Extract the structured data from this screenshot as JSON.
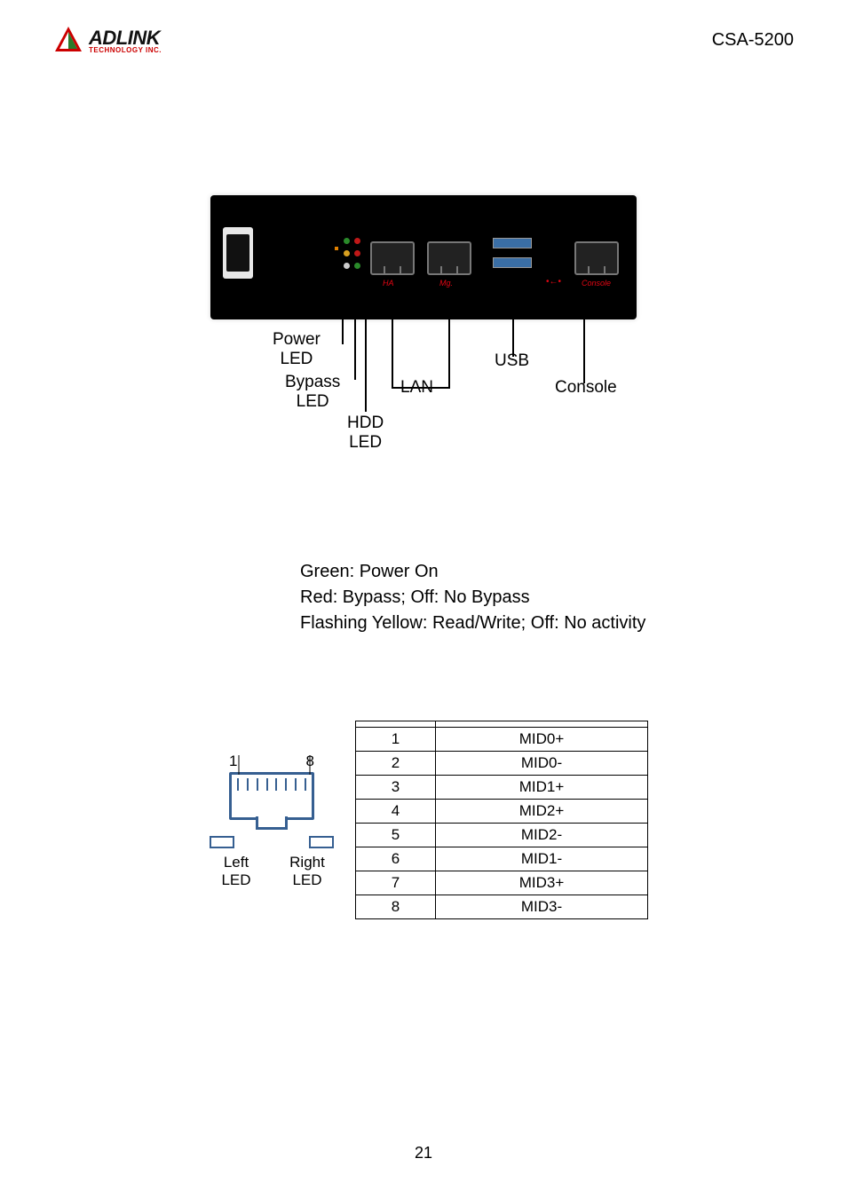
{
  "header": {
    "logo_text": "ADLINK",
    "logo_sub": "TECHNOLOGY INC.",
    "model": "CSA-5200"
  },
  "diagram": {
    "callouts": {
      "power_led": "Power\nLED",
      "bypass_led": "Bypass\nLED",
      "hdd_led": "HDD\nLED",
      "lan": "LAN",
      "usb": "USB",
      "console": "Console"
    },
    "port_labels": {
      "ha": "HA",
      "mg": "Mg.",
      "console": "Console"
    },
    "colors": {
      "device_bg": "#000000",
      "led_green": "#2a8a2a",
      "led_red": "#c01818",
      "led_yellow": "#d8a020",
      "usb_blue": "#3a6ea5",
      "callout_red": "#e30613",
      "rj_border": "#365f91"
    }
  },
  "led_descriptions": {
    "power": "Green: Power On",
    "bypass": "Red: Bypass; Off: No Bypass",
    "hdd": "Flashing Yellow: Read/Write; Off: No activity"
  },
  "rj_diagram": {
    "pin_left": "1",
    "pin_right": "8",
    "left_label_1": "Left",
    "left_label_2": "LED",
    "right_label_1": "Right",
    "right_label_2": "LED"
  },
  "pin_table": {
    "rows": [
      {
        "pin": "1",
        "signal": "MID0+"
      },
      {
        "pin": "2",
        "signal": "MID0-"
      },
      {
        "pin": "3",
        "signal": "MID1+"
      },
      {
        "pin": "4",
        "signal": "MID2+"
      },
      {
        "pin": "5",
        "signal": "MID2-"
      },
      {
        "pin": "6",
        "signal": "MID1-"
      },
      {
        "pin": "7",
        "signal": "MID3+"
      },
      {
        "pin": "8",
        "signal": "MID3-"
      }
    ]
  },
  "page_number": "21"
}
